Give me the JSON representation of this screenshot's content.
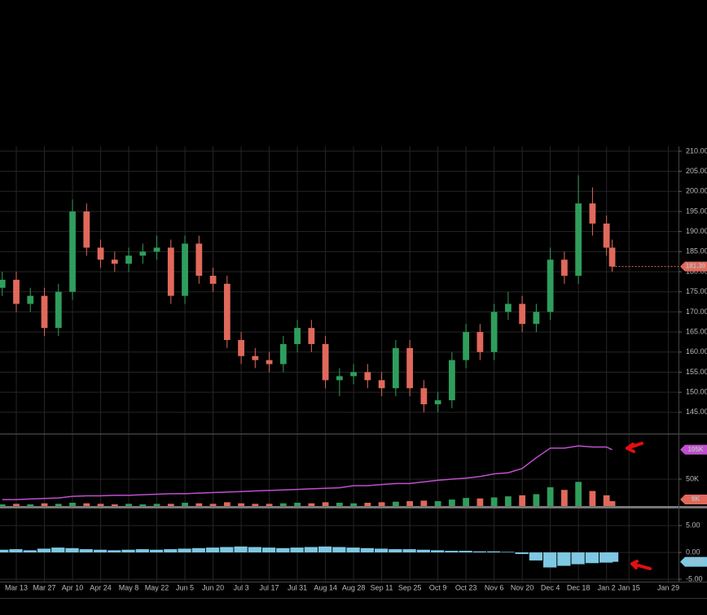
{
  "chart_data": [
    {
      "type": "candlestick",
      "x": [
        -5,
        0,
        5,
        10,
        15,
        20,
        25,
        30,
        35,
        40,
        45,
        50,
        55,
        60,
        65,
        70,
        75,
        80,
        85,
        90,
        95,
        100,
        105,
        110,
        115,
        120,
        125,
        130,
        135,
        140,
        145,
        150,
        155,
        160,
        165,
        170,
        175,
        180,
        185,
        190,
        195,
        200,
        205,
        210,
        212
      ],
      "open": [
        176,
        178,
        172,
        174,
        166,
        175,
        195,
        186,
        183,
        182,
        184,
        185,
        186,
        174,
        187,
        179,
        177,
        163,
        159,
        158,
        157,
        162,
        166,
        162,
        153,
        154,
        155,
        153,
        151,
        161,
        151,
        147,
        148,
        158,
        165,
        160,
        170,
        172,
        167,
        170,
        183,
        179,
        197,
        192,
        186
      ],
      "high": [
        180,
        180,
        176,
        176,
        177,
        198,
        197,
        188,
        185,
        186,
        187,
        189,
        188,
        189,
        189,
        181,
        179,
        165,
        161,
        160,
        164,
        168,
        168,
        164,
        156,
        157,
        157,
        155,
        163,
        163,
        153,
        150,
        160,
        167,
        167,
        172,
        175,
        174,
        172,
        186,
        185,
        204,
        201,
        194,
        188
      ],
      "low": [
        174,
        170,
        170,
        164,
        164,
        173,
        184,
        181,
        180,
        180,
        182,
        183,
        172,
        172,
        177,
        175,
        161,
        157,
        156,
        155,
        155,
        160,
        160,
        151,
        149,
        152,
        151,
        149,
        149,
        149,
        145,
        145,
        146,
        156,
        158,
        158,
        168,
        165,
        165,
        168,
        177,
        177,
        189,
        184,
        180
      ],
      "close": [
        178,
        172,
        174,
        166,
        175,
        195,
        186,
        183,
        182,
        184,
        185,
        186,
        174,
        187,
        179,
        177,
        163,
        159,
        158,
        157,
        162,
        166,
        162,
        153,
        154,
        155,
        153,
        151,
        161,
        151,
        147,
        148,
        158,
        165,
        160,
        170,
        172,
        167,
        170,
        183,
        179,
        197,
        192,
        186,
        181.3
      ],
      "last_value_label": "181.30",
      "up_color": "#2f9e5c",
      "down_color": "#e0695b",
      "xlim": [
        -5.8,
        235.6
      ],
      "xticks": [
        {
          "value": 0,
          "label": "Mar 13"
        },
        {
          "value": 10,
          "label": "Mar 27"
        },
        {
          "value": 20,
          "label": "Apr 10"
        },
        {
          "value": 30,
          "label": "Apr 24"
        },
        {
          "value": 40,
          "label": "May 8"
        },
        {
          "value": 50,
          "label": "May 22"
        },
        {
          "value": 60,
          "label": "Jun 5"
        },
        {
          "value": 70,
          "label": "Jun 20"
        },
        {
          "value": 80,
          "label": "Jul 3"
        },
        {
          "value": 90,
          "label": "Jul 17"
        },
        {
          "value": 100,
          "label": "Jul 31"
        },
        {
          "value": 110,
          "label": "Aug 14"
        },
        {
          "value": 120,
          "label": "Aug 28"
        },
        {
          "value": 130,
          "label": "Sep 11"
        },
        {
          "value": 140,
          "label": "Sep 25"
        },
        {
          "value": 150,
          "label": "Oct 9"
        },
        {
          "value": 160,
          "label": "Oct 23"
        },
        {
          "value": 170,
          "label": "Nov 6"
        },
        {
          "value": 180,
          "label": "Nov 20"
        },
        {
          "value": 190,
          "label": "Dec 4"
        },
        {
          "value": 200,
          "label": "Dec 18"
        },
        {
          "value": 210,
          "label": "Jan 2"
        },
        {
          "value": 218,
          "label": "Jan 15"
        },
        {
          "value": 232,
          "label": "Jan 29"
        }
      ],
      "ylim": [
        139.7,
        211.2
      ],
      "yticks": [
        {
          "value": 145,
          "label": "145.00"
        },
        {
          "value": 150,
          "label": "150.00"
        },
        {
          "value": 155,
          "label": "155.00"
        },
        {
          "value": 160,
          "label": "160.00"
        },
        {
          "value": 165,
          "label": "165.00"
        },
        {
          "value": 170,
          "label": "170.00"
        },
        {
          "value": 175,
          "label": "175.00"
        },
        {
          "value": 180,
          "label": "180.00"
        },
        {
          "value": 185,
          "label": "185.00"
        },
        {
          "value": 190,
          "label": "190.00"
        },
        {
          "value": 195,
          "label": "195.00"
        },
        {
          "value": 200,
          "label": "200.00"
        },
        {
          "value": 205,
          "label": "205.00"
        },
        {
          "value": 210,
          "label": "210.00"
        }
      ],
      "grid": true
    },
    {
      "type": "volume",
      "values": [
        3000,
        4000,
        3000,
        5000,
        4000,
        6000,
        5000,
        4000,
        3000,
        4000,
        3000,
        4000,
        4000,
        6000,
        5000,
        4000,
        7000,
        5000,
        4000,
        4000,
        5000,
        6000,
        5000,
        7000,
        6000,
        5000,
        6000,
        7000,
        8000,
        9000,
        10000,
        9000,
        12000,
        15000,
        14000,
        16000,
        18000,
        20000,
        22000,
        35000,
        30000,
        45000,
        28000,
        20000,
        9000
      ],
      "last_value_label": "9K",
      "line": {
        "color": "#c04fcf",
        "values": [
          12000,
          12000,
          13000,
          14000,
          15000,
          18000,
          19000,
          19000,
          20000,
          20000,
          21000,
          22000,
          23000,
          23000,
          24000,
          25000,
          26000,
          27000,
          28000,
          29000,
          30000,
          31000,
          32000,
          33000,
          34000,
          38000,
          38000,
          40000,
          42000,
          42000,
          45000,
          48000,
          50000,
          52000,
          55000,
          60000,
          62000,
          70000,
          90000,
          108000,
          108000,
          112000,
          110000,
          110000,
          105000
        ],
        "last_value_label": "105K"
      },
      "ylim": [
        0,
        132000
      ],
      "yticks": [
        {
          "value": 50000,
          "label": "50K"
        }
      ],
      "grid": true
    },
    {
      "type": "histogram-osc",
      "values": [
        0.5,
        0.6,
        0.4,
        0.7,
        0.9,
        0.8,
        0.6,
        0.5,
        0.4,
        0.5,
        0.6,
        0.5,
        0.6,
        0.7,
        0.8,
        0.9,
        1.0,
        1.1,
        1.0,
        0.9,
        0.8,
        0.9,
        1.0,
        1.1,
        1.0,
        0.9,
        0.8,
        0.7,
        0.6,
        0.6,
        0.5,
        0.4,
        0.3,
        0.3,
        0.2,
        0.2,
        0.1,
        -0.3,
        -1.5,
        -2.8,
        -2.5,
        -2.2,
        -2.0,
        -1.9,
        -1.75
      ],
      "last_value_label": "-1.75",
      "color": "#7ec8e3",
      "ylim": [
        -5.45,
        8.2
      ],
      "yticks": [
        {
          "value": 5,
          "label": "5.00"
        },
        {
          "value": 0,
          "label": "0.00"
        },
        {
          "value": -5,
          "label": "-5.00"
        }
      ],
      "grid": true
    }
  ]
}
